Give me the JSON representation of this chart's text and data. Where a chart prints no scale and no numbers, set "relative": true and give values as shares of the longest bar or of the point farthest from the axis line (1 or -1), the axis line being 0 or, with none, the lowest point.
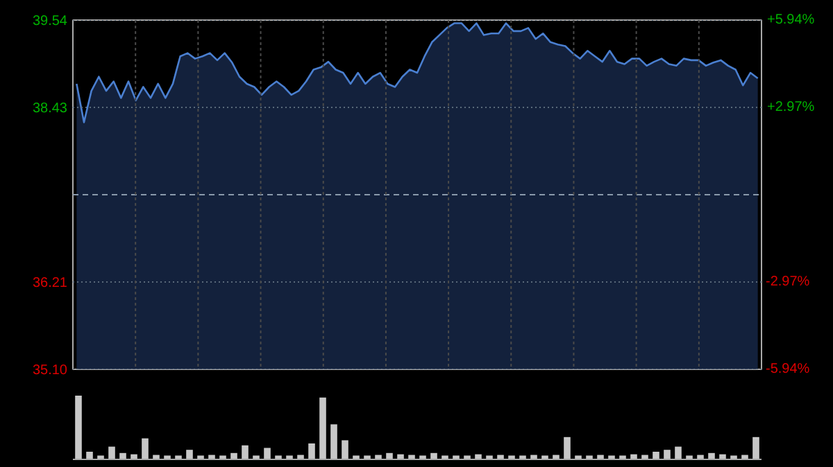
{
  "chart_data": [
    {
      "type": "area",
      "categories": [
        null,
        null,
        null,
        null,
        null,
        null,
        null,
        null,
        null,
        null,
        null,
        null,
        null,
        null,
        null,
        null,
        null,
        null,
        null,
        null,
        null,
        null,
        null,
        null,
        null,
        null,
        null,
        null,
        null,
        null,
        null,
        null,
        null,
        null,
        null,
        null,
        null,
        null,
        null,
        null,
        null,
        null,
        null,
        null,
        null,
        null,
        null,
        null,
        null,
        null,
        null,
        null,
        null,
        null,
        null,
        null,
        null,
        null,
        null,
        null,
        null,
        null,
        null,
        null,
        null,
        null,
        null,
        null,
        null,
        null,
        null,
        null,
        null,
        null,
        null,
        null,
        null,
        null,
        null,
        null,
        null,
        null,
        null,
        null,
        null,
        null,
        null,
        null,
        null,
        null,
        null,
        null,
        null
      ],
      "series": [
        {
          "color": "#4a7fd0",
          "values": [
            38.73,
            38.24,
            38.64,
            38.82,
            38.64,
            38.76,
            38.55,
            38.76,
            38.52,
            38.69,
            38.55,
            38.73,
            38.55,
            38.73,
            39.08,
            39.12,
            39.05,
            39.08,
            39.12,
            39.03,
            39.12,
            39.0,
            38.82,
            38.73,
            38.69,
            38.59,
            38.69,
            38.76,
            38.69,
            38.59,
            38.64,
            38.76,
            38.91,
            38.94,
            39.01,
            38.91,
            38.87,
            38.73,
            38.87,
            38.73,
            38.82,
            38.87,
            38.73,
            38.69,
            38.82,
            38.91,
            38.87,
            39.08,
            39.26,
            39.35,
            39.44,
            39.5,
            39.5,
            39.4,
            39.5,
            39.35,
            39.37,
            39.37,
            39.5,
            39.4,
            39.4,
            39.44,
            39.3,
            39.37,
            39.26,
            39.23,
            39.21,
            39.12,
            39.05,
            39.15,
            39.08,
            39.01,
            39.15,
            39.01,
            38.98,
            39.05,
            39.05,
            38.96,
            39.01,
            39.05,
            38.98,
            38.96,
            39.05,
            39.03,
            39.03,
            38.96,
            39.0,
            39.03,
            38.96,
            38.91,
            38.71,
            38.87,
            38.8
          ]
        }
      ],
      "ylim": [
        35.1,
        39.54
      ],
      "yticks": [
        {
          "value": 35.1,
          "label": "35.10"
        },
        36.21,
        38.43,
        39.54
      ],
      "y2lim": [
        -5.94,
        5.94
      ],
      "y2ticks": [
        {
          "value": -5.94,
          "label": "-5.94%"
        },
        {
          "value": -2.97,
          "label": "-2.97%"
        },
        {
          "value": 2.97,
          "label": "+2.97%"
        },
        {
          "value": 5.94,
          "label": "+5.94%"
        }
      ],
      "ref_lines": [
        {
          "axis": "y",
          "value": 37.32,
          "color": "#8a9aac",
          "line_style": "dashed"
        }
      ],
      "grid": true,
      "tick_labels": "y"
    },
    {
      "type": "bar",
      "relative": true,
      "categories": [
        null,
        null,
        null,
        null,
        null,
        null,
        null,
        null,
        null,
        null,
        null,
        null,
        null,
        null,
        null,
        null,
        null,
        null,
        null,
        null,
        null,
        null,
        null,
        null,
        null,
        null,
        null,
        null,
        null,
        null,
        null,
        null,
        null,
        null,
        null,
        null,
        null,
        null,
        null,
        null,
        null,
        null,
        null,
        null,
        null,
        null,
        null,
        null,
        null,
        null,
        null,
        null,
        null,
        null,
        null,
        null,
        null,
        null,
        null,
        null,
        null,
        null
      ],
      "values": [
        1.0,
        0.12,
        0.06,
        0.2,
        0.1,
        0.08,
        0.33,
        0.07,
        0.06,
        0.06,
        0.15,
        0.06,
        0.07,
        0.06,
        0.1,
        0.22,
        0.06,
        0.18,
        0.06,
        0.06,
        0.07,
        0.25,
        0.97,
        0.55,
        0.3,
        0.06,
        0.06,
        0.07,
        0.1,
        0.08,
        0.07,
        0.06,
        0.1,
        0.06,
        0.06,
        0.06,
        0.08,
        0.06,
        0.07,
        0.06,
        0.06,
        0.07,
        0.06,
        0.07,
        0.35,
        0.06,
        0.06,
        0.07,
        0.06,
        0.06,
        0.08,
        0.07,
        0.12,
        0.15,
        0.2,
        0.06,
        0.07,
        0.1,
        0.08,
        0.06,
        0.07,
        0.35
      ],
      "color": "#c8c8c8"
    }
  ]
}
